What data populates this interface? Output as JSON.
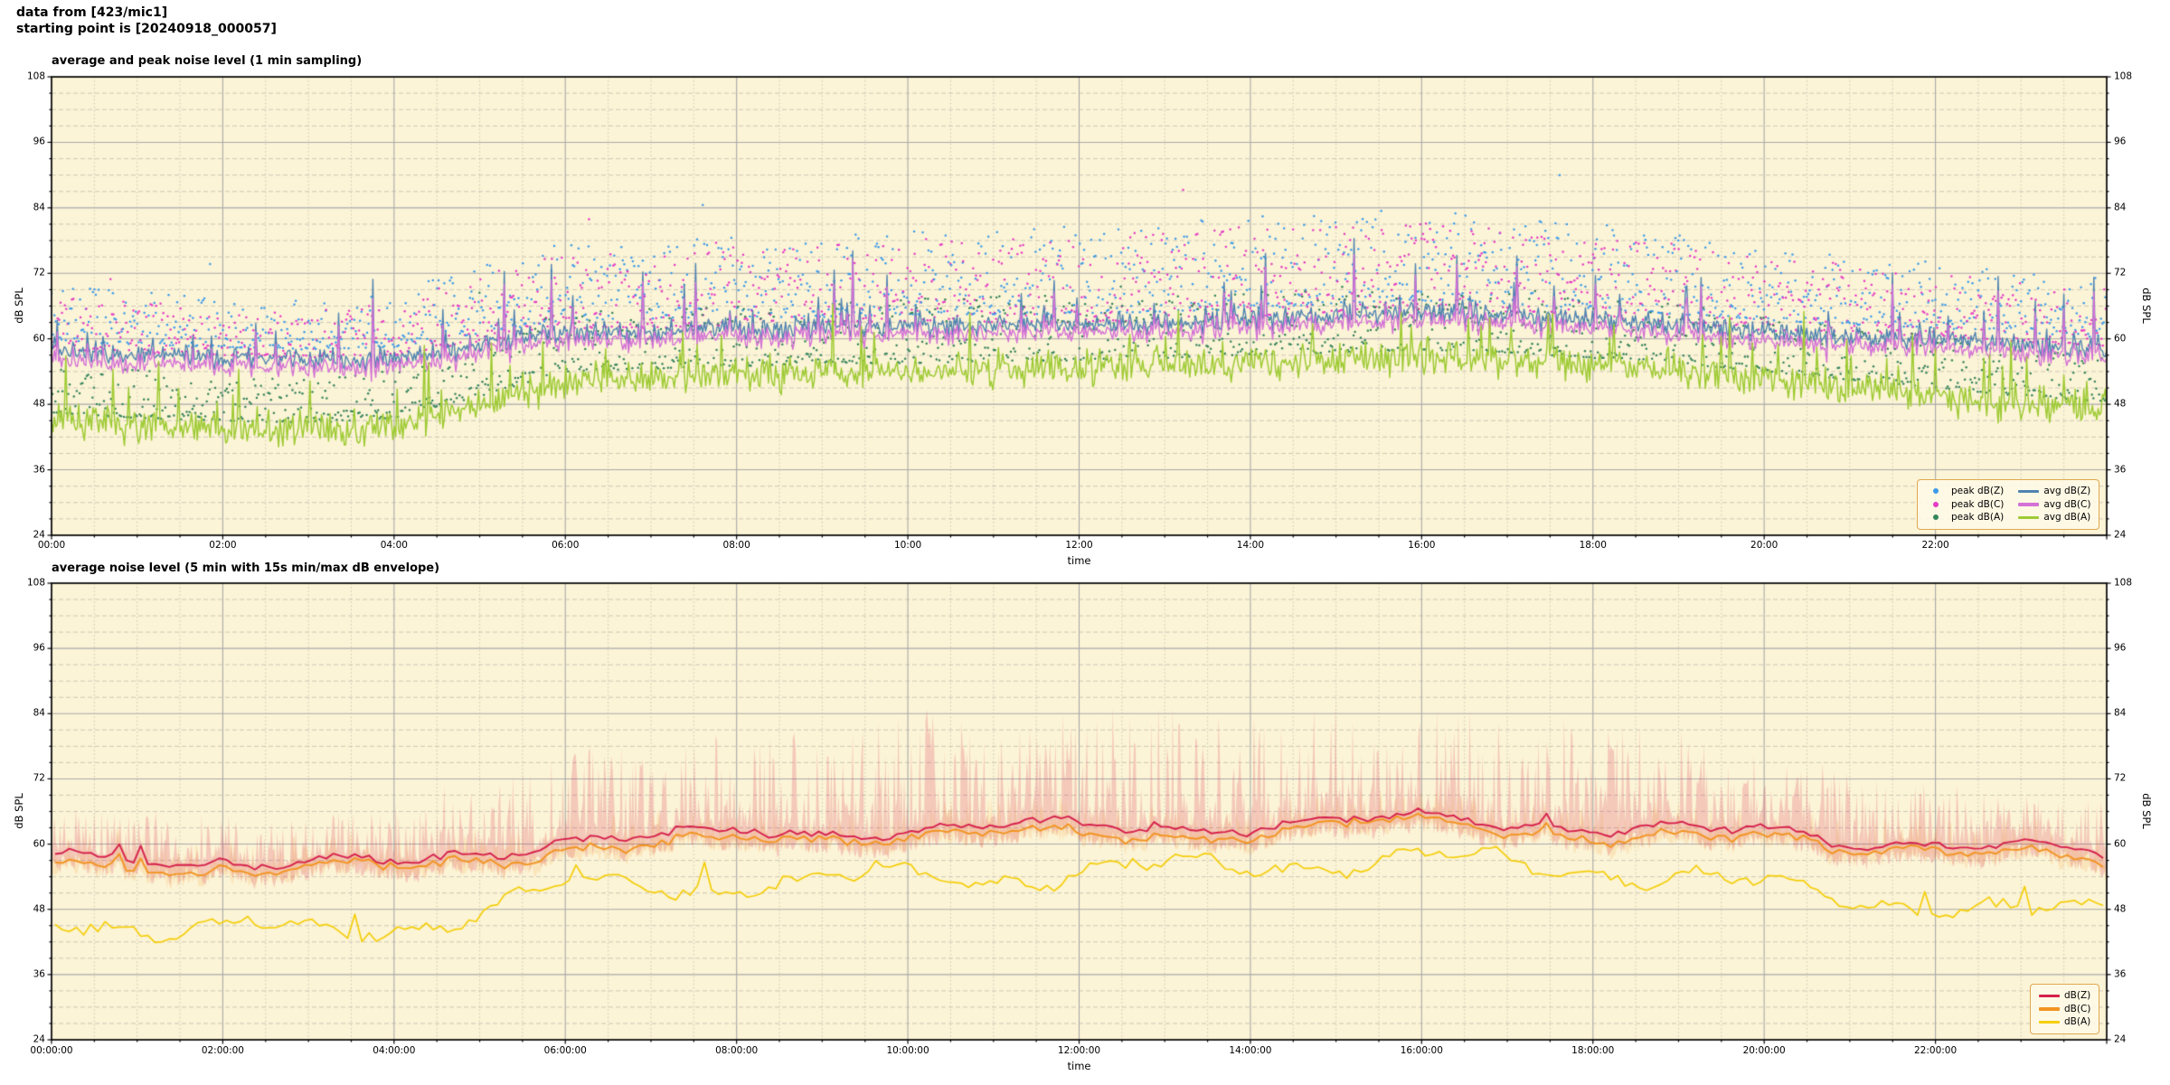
{
  "header": {
    "line1": "data from [423/mic1]",
    "line2": "starting point is [20240918_000057]"
  },
  "colors": {
    "plot_bg": "#FCF4D6",
    "grid_major": "#A9A9A9",
    "grid_minor": "#C7C3B5",
    "spine": "#000000",
    "peak_z": "#3D9BE9",
    "peak_c": "#E53BC6",
    "peak_a": "#35855C",
    "avg_z": "#4F83B1",
    "avg_c": "#D471D6",
    "avg_a": "#9FCB35",
    "db_z": "#D6204C",
    "db_c": "#F29421",
    "db_a": "#F4CE0A",
    "envelope_z": "#D6204C",
    "envelope_c": "#F29421",
    "legend_border": "#DFA850",
    "legend_bg": "rgba(254,249,231,0.88)"
  },
  "chart_data": [
    {
      "type": "scatter",
      "title": "average and peak noise level (1 min sampling)",
      "xlabel": "time",
      "ylabel": "dB SPL",
      "ylim": [
        24,
        108
      ],
      "xlim_hours": [
        0,
        24
      ],
      "sampling": "1 min",
      "grid": "major solid, minor dashed/dotted",
      "y_major_ticks": [
        24,
        36,
        48,
        60,
        72,
        84,
        96,
        108
      ],
      "y_minor_step_db": 3,
      "x_major_tick_hours": [
        0,
        2,
        4,
        6,
        8,
        10,
        12,
        14,
        16,
        18,
        20,
        22
      ],
      "x_tick_labels": [
        "00:00",
        "02:00",
        "04:00",
        "06:00",
        "08:00",
        "10:00",
        "12:00",
        "14:00",
        "16:00",
        "18:00",
        "20:00",
        "22:00"
      ],
      "x_minor_step_minutes": 30,
      "legend_position": "lower right",
      "legend": [
        {
          "label": "peak dB(Z)",
          "marker": "dot",
          "color_key": "peak_z"
        },
        {
          "label": "peak dB(C)",
          "marker": "dot",
          "color_key": "peak_c"
        },
        {
          "label": "peak dB(A)",
          "marker": "dot",
          "color_key": "peak_a"
        },
        {
          "label": "avg dB(Z)",
          "marker": "line",
          "color_key": "avg_z"
        },
        {
          "label": "avg dB(C)",
          "marker": "line",
          "color_key": "avg_c"
        },
        {
          "label": "avg dB(A)",
          "marker": "line",
          "color_key": "avg_a"
        }
      ],
      "series_hourly": {
        "hours": [
          0,
          1,
          2,
          3,
          4,
          5,
          6,
          7,
          8,
          9,
          10,
          11,
          12,
          13,
          14,
          15,
          16,
          17,
          18,
          19,
          20,
          21,
          22,
          23,
          24
        ],
        "avg_dBZ": [
          57.5,
          57,
          56.5,
          56,
          56.5,
          59,
          61.5,
          61.5,
          62,
          62,
          62.5,
          62.5,
          62.5,
          63,
          63.5,
          64.5,
          65,
          64.5,
          63.5,
          62.5,
          61.5,
          60.5,
          60,
          59,
          58
        ],
        "avg_dBC": [
          56,
          55.5,
          55,
          54.5,
          55,
          57.5,
          60,
          60,
          60.5,
          60.5,
          61,
          61,
          61,
          61.5,
          62,
          63,
          63.5,
          63,
          62,
          61,
          59.5,
          59,
          58.5,
          57.5,
          56.5
        ],
        "avg_dBA": [
          45,
          44,
          43.5,
          43,
          44,
          48,
          52.5,
          53,
          53.5,
          54,
          54,
          54.5,
          54.5,
          55,
          55.5,
          56,
          56.5,
          56,
          55,
          54,
          52.5,
          51,
          49.5,
          48,
          47
        ],
        "peak_spread_dBZ": [
          10,
          10,
          9,
          9,
          10,
          13,
          14,
          14,
          15,
          15,
          16,
          16,
          16,
          17,
          17,
          17,
          17,
          16,
          16,
          15,
          14,
          13,
          12,
          11,
          11
        ],
        "peak_spread_dBA": [
          9,
          9,
          8,
          8,
          9,
          10,
          11,
          11,
          11,
          11,
          12,
          12,
          12,
          12,
          12,
          12,
          12,
          12,
          11,
          11,
          10,
          10,
          10,
          9,
          9
        ]
      }
    },
    {
      "type": "line",
      "title": "average noise level (5 min with 15s min/max dB envelope)",
      "xlabel": "time",
      "ylabel": "dB SPL",
      "ylim": [
        24,
        108
      ],
      "xlim_hours": [
        0,
        24
      ],
      "sampling": "5 min",
      "envelope": "15s min/max",
      "y_major_ticks": [
        24,
        36,
        48,
        60,
        72,
        84,
        96,
        108
      ],
      "y_minor_step_db": 3,
      "x_major_tick_hours": [
        0,
        2,
        4,
        6,
        8,
        10,
        12,
        14,
        16,
        18,
        20,
        22
      ],
      "x_tick_labels": [
        "00:00:00",
        "02:00:00",
        "04:00:00",
        "06:00:00",
        "08:00:00",
        "10:00:00",
        "12:00:00",
        "14:00:00",
        "16:00:00",
        "18:00:00",
        "20:00:00",
        "22:00:00"
      ],
      "x_minor_step_minutes": 30,
      "legend_position": "lower right",
      "legend": [
        {
          "label": "dB(Z)",
          "marker": "line",
          "color_key": "db_z"
        },
        {
          "label": "dB(C)",
          "marker": "line",
          "color_key": "db_c"
        },
        {
          "label": "dB(A)",
          "marker": "line",
          "color_key": "db_a"
        }
      ],
      "series_hourly": {
        "hours": [
          0,
          1,
          2,
          3,
          4,
          5,
          6,
          7,
          8,
          9,
          10,
          11,
          12,
          13,
          14,
          15,
          16,
          17,
          18,
          19,
          20,
          21,
          22,
          23,
          24
        ],
        "dBZ": [
          57.5,
          57,
          56.5,
          56,
          56.5,
          59,
          61.5,
          61.5,
          62,
          62,
          62.5,
          62.5,
          62.5,
          63,
          63.5,
          64.5,
          65,
          64.5,
          63.5,
          62.5,
          61.5,
          60.5,
          60,
          59,
          58
        ],
        "dBC": [
          56,
          55.5,
          55,
          54.5,
          55,
          57.5,
          60,
          60,
          60.5,
          60.5,
          61,
          61,
          61,
          61.5,
          62,
          63,
          63.5,
          63,
          62,
          61,
          59.5,
          59,
          58.5,
          57.5,
          56.5
        ],
        "dBA": [
          45,
          44,
          43.5,
          43,
          44,
          48,
          52.5,
          53,
          53.5,
          54,
          54,
          54.5,
          54.5,
          55,
          55.5,
          56,
          56.5,
          56,
          55,
          54,
          52.5,
          51,
          49.5,
          48,
          47
        ],
        "env_max_dBZ": [
          67,
          66,
          65,
          65,
          67,
          73,
          78,
          79,
          80,
          81,
          85,
          84,
          85,
          86,
          86,
          86,
          85,
          85,
          84,
          81,
          77,
          74,
          71,
          69,
          68
        ],
        "env_min_offset": 3.5
      }
    }
  ]
}
